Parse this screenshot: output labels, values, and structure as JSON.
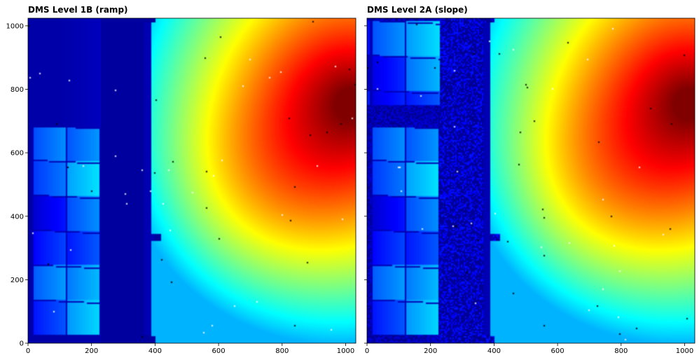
{
  "chart_data": [
    {
      "type": "heatmap",
      "title": "DMS Level 1B (ramp)",
      "xlabel": "",
      "ylabel": "",
      "xlim": [
        0,
        1032
      ],
      "ylim": [
        0,
        1024
      ],
      "xticks": [
        0,
        200,
        400,
        600,
        800,
        1000
      ],
      "yticks": [
        0,
        200,
        400,
        600,
        800,
        1000
      ],
      "colormap": "jet",
      "grid": false,
      "legend": "none"
    },
    {
      "type": "heatmap",
      "title": "DMS Level 2A (slope)",
      "xlabel": "",
      "ylabel": "",
      "xlim": [
        0,
        1032
      ],
      "ylim": [
        0,
        1024
      ],
      "xticks": [
        0,
        200,
        400,
        600,
        800,
        1000
      ],
      "yticks": [
        0,
        200,
        400,
        600,
        800,
        1000
      ],
      "colormap": "jet",
      "grid": false,
      "legend": "none"
    }
  ]
}
